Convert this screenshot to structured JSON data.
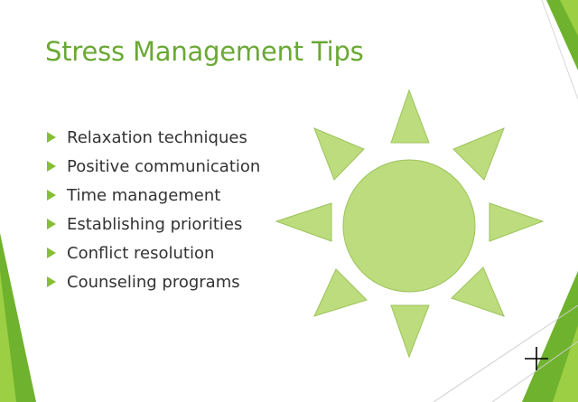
{
  "slide": {
    "title": "Stress Management Tips",
    "bullets": [
      "Relaxation techniques",
      "Positive communication",
      "Time management",
      "Establishing priorities",
      "Conflict resolution",
      "Counseling programs"
    ]
  },
  "graphics": {
    "sun_icon": "sun-icon",
    "cursor_icon": "crosshair-cursor-icon"
  },
  "colors": {
    "title": "#6aa834",
    "bullet_marker": "#86bf35",
    "sun_fill": "#bddc7e",
    "sun_stroke": "#9cc45a",
    "accent_dark": "#6fb22d",
    "accent_light": "#9ccf44"
  }
}
